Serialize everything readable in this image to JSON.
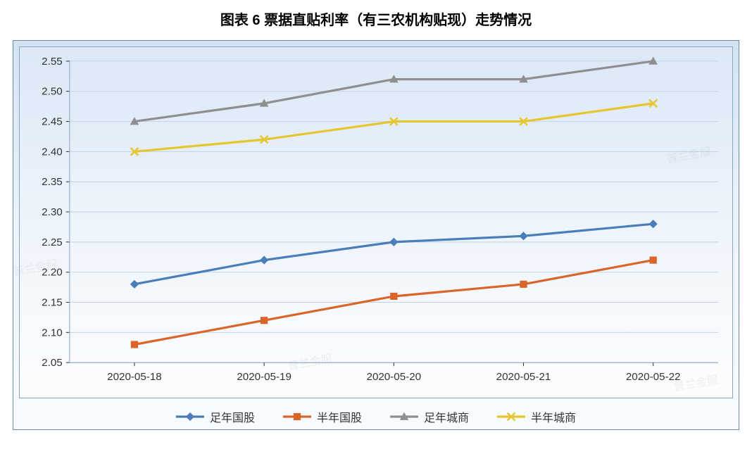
{
  "title": "图表 6  票据直贴利率（有三农机构贴现）走势情况",
  "chart": {
    "type": "line",
    "background_gradient_top": "#d4e3f3",
    "background_gradient_bottom": "#fcfdfe",
    "border_color": "#6a8bb0",
    "plot_border_color": "#88a5c6",
    "grid_color": "#c2d2e6",
    "axis_text_color": "#333333",
    "axis_fontsize": 15,
    "line_width": 3.2,
    "marker_size": 9,
    "x_categories": [
      "2020-05-18",
      "2020-05-19",
      "2020-05-20",
      "2020-05-21",
      "2020-05-22"
    ],
    "ylim": [
      2.05,
      2.55
    ],
    "yticks": [
      2.05,
      2.1,
      2.15,
      2.2,
      2.25,
      2.3,
      2.35,
      2.4,
      2.45,
      2.5,
      2.55
    ],
    "ytick_labels": [
      "2.05",
      "2.10",
      "2.15",
      "2.20",
      "2.25",
      "2.30",
      "2.35",
      "2.40",
      "2.45",
      "2.50",
      "2.55"
    ],
    "series": [
      {
        "name": "足年国股",
        "color": "#4a7ebb",
        "marker": "diamond",
        "values": [
          2.18,
          2.22,
          2.25,
          2.26,
          2.28
        ]
      },
      {
        "name": "半年国股",
        "color": "#d9652a",
        "marker": "square",
        "values": [
          2.08,
          2.12,
          2.16,
          2.18,
          2.22
        ]
      },
      {
        "name": "足年城商",
        "color": "#8f8f8f",
        "marker": "triangle",
        "values": [
          2.45,
          2.48,
          2.52,
          2.52,
          2.55
        ]
      },
      {
        "name": "半年城商",
        "color": "#e6c62f",
        "marker": "x",
        "values": [
          2.4,
          2.42,
          2.45,
          2.45,
          2.48
        ]
      }
    ]
  },
  "legend_labels": {
    "s0": "足年国股",
    "s1": "半年国股",
    "s2": "足年城商",
    "s3": "半年城商"
  },
  "watermark_text": "普兰金服"
}
